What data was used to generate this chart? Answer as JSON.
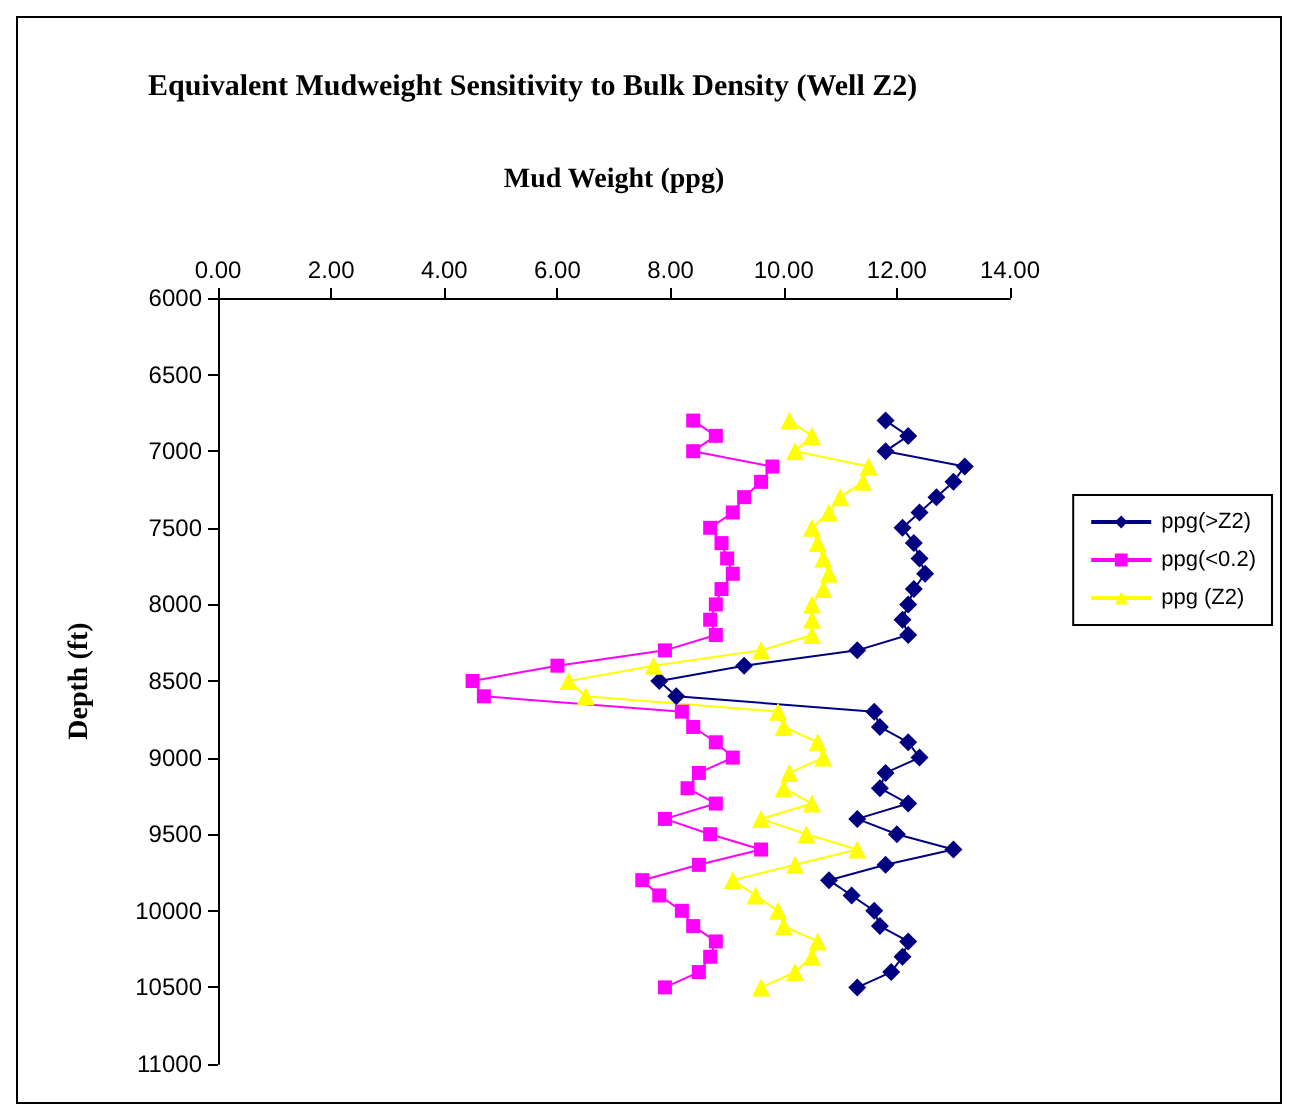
{
  "chart_data": {
    "type": "line",
    "title": "Equivalent Mudweight Sensitivity to Bulk Density (Well Z2)",
    "xlabel": "Mud Weight (ppg)",
    "ylabel": "Depth (ft)",
    "xlim": [
      0,
      14
    ],
    "xticks": [
      {
        "value": 0,
        "label": "0.00"
      },
      {
        "value": 2,
        "label": "2.00"
      },
      {
        "value": 4,
        "label": "4.00"
      },
      {
        "value": 6,
        "label": "6.00"
      },
      {
        "value": 8,
        "label": "8.00"
      },
      {
        "value": 10,
        "label": "10.00"
      },
      {
        "value": 12,
        "label": "12.00"
      },
      {
        "value": 14,
        "label": "14.00"
      }
    ],
    "ylim": [
      11000,
      6000
    ],
    "yticks": [
      6000,
      6500,
      7000,
      7500,
      8000,
      8500,
      9000,
      9500,
      10000,
      10500,
      11000
    ],
    "grid": false,
    "legend": "right",
    "line_style": "solid",
    "series": [
      {
        "name": "ppg(>Z2)",
        "color": "#000080",
        "marker": "diamond",
        "x": [
          11.8,
          12.2,
          11.8,
          13.2,
          13.0,
          12.7,
          12.4,
          12.1,
          12.3,
          12.4,
          12.5,
          12.3,
          12.2,
          12.1,
          12.2,
          11.3,
          9.3,
          7.8,
          8.1,
          11.6,
          11.7,
          12.2,
          12.4,
          11.8,
          11.7,
          12.2,
          11.3,
          12.0,
          13.0,
          11.8,
          10.8,
          11.2,
          11.6,
          11.7,
          12.2,
          12.1,
          11.9,
          11.3
        ],
        "values": [
          6800,
          6900,
          7000,
          7100,
          7200,
          7300,
          7400,
          7500,
          7600,
          7700,
          7800,
          7900,
          8000,
          8100,
          8200,
          8300,
          8400,
          8500,
          8600,
          8700,
          8800,
          8900,
          9000,
          9100,
          9200,
          9300,
          9400,
          9500,
          9600,
          9700,
          9800,
          9900,
          10000,
          10100,
          10200,
          10300,
          10400,
          10500
        ]
      },
      {
        "name": "ppg(<0.2)",
        "color": "#ff00ff",
        "marker": "square",
        "x": [
          8.4,
          8.8,
          8.4,
          9.8,
          9.6,
          9.3,
          9.1,
          8.7,
          8.9,
          9.0,
          9.1,
          8.9,
          8.8,
          8.7,
          8.8,
          7.9,
          6.0,
          4.5,
          4.7,
          8.2,
          8.4,
          8.8,
          9.1,
          8.5,
          8.3,
          8.8,
          7.9,
          8.7,
          9.6,
          8.5,
          7.5,
          7.8,
          8.2,
          8.4,
          8.8,
          8.7,
          8.5,
          7.9
        ],
        "values": [
          6800,
          6900,
          7000,
          7100,
          7200,
          7300,
          7400,
          7500,
          7600,
          7700,
          7800,
          7900,
          8000,
          8100,
          8200,
          8300,
          8400,
          8500,
          8600,
          8700,
          8800,
          8900,
          9000,
          9100,
          9200,
          9300,
          9400,
          9500,
          9600,
          9700,
          9800,
          9900,
          10000,
          10100,
          10200,
          10300,
          10400,
          10500
        ]
      },
      {
        "name": "ppg (Z2)",
        "color": "#ffff00",
        "marker": "triangle",
        "x": [
          10.1,
          10.5,
          10.2,
          11.5,
          11.4,
          11.0,
          10.8,
          10.5,
          10.6,
          10.7,
          10.8,
          10.7,
          10.5,
          10.5,
          10.5,
          9.6,
          7.7,
          6.2,
          6.5,
          9.9,
          10.0,
          10.6,
          10.7,
          10.1,
          10.0,
          10.5,
          9.6,
          10.4,
          11.3,
          10.2,
          9.1,
          9.5,
          9.9,
          10.0,
          10.6,
          10.5,
          10.2,
          9.6
        ],
        "values": [
          6800,
          6900,
          7000,
          7100,
          7200,
          7300,
          7400,
          7500,
          7600,
          7700,
          7800,
          7900,
          8000,
          8100,
          8200,
          8300,
          8400,
          8500,
          8600,
          8700,
          8800,
          8900,
          9000,
          9100,
          9200,
          9300,
          9400,
          9500,
          9600,
          9700,
          9800,
          9900,
          10000,
          10100,
          10200,
          10300,
          10400,
          10500
        ]
      }
    ]
  }
}
